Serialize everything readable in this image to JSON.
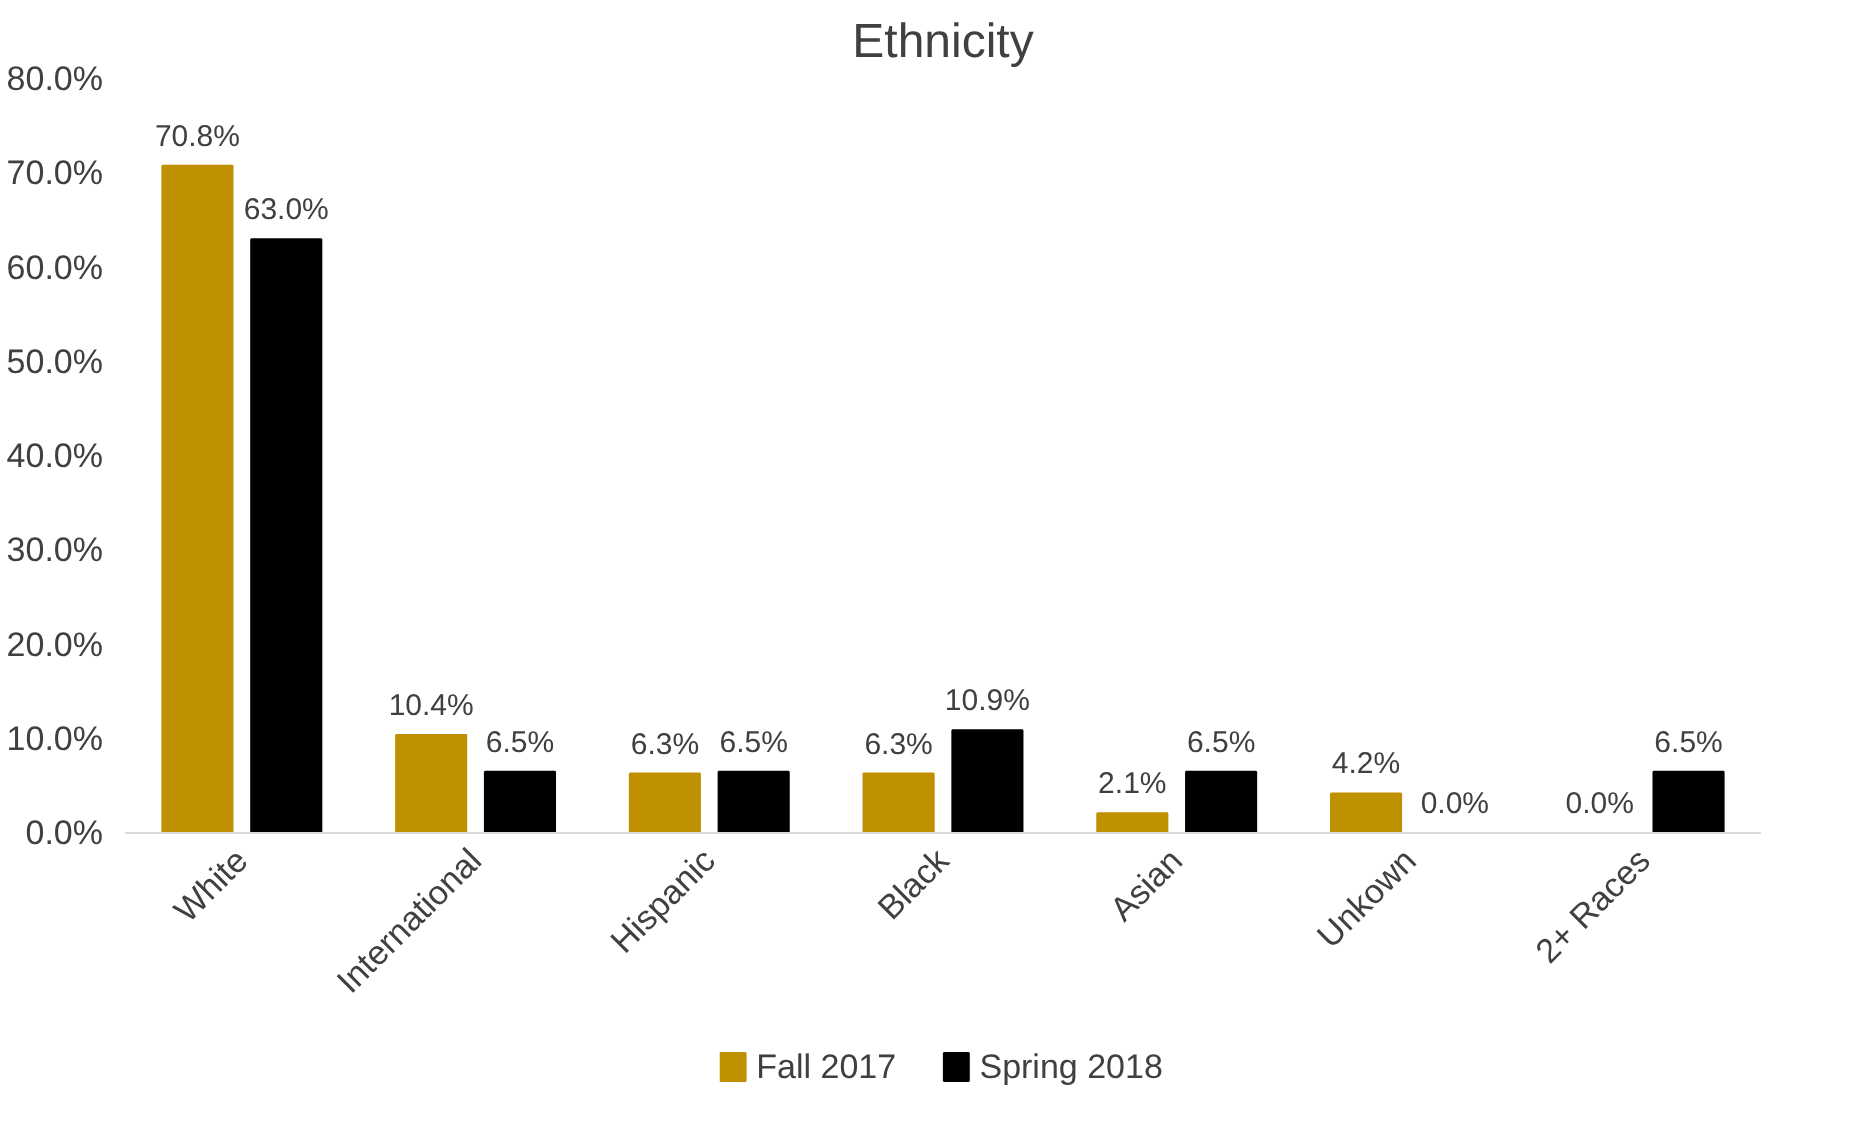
{
  "chart_data": {
    "type": "bar",
    "title": "Ethnicity",
    "categories": [
      "White",
      "International",
      "Hispanic",
      "Black",
      "Asian",
      "Unkown",
      "2+ Races"
    ],
    "series": [
      {
        "name": "Fall 2017",
        "color": "#bf9000",
        "values": [
          70.8,
          10.4,
          6.3,
          6.3,
          2.1,
          4.2,
          0.0
        ],
        "value_labels": [
          "70.8%",
          "10.4%",
          "6.3%",
          "6.3%",
          "2.1%",
          "4.2%",
          "0.0%"
        ]
      },
      {
        "name": "Spring 2018",
        "color": "#000000",
        "values": [
          63.0,
          6.5,
          6.5,
          10.9,
          6.5,
          0.0,
          6.5
        ],
        "value_labels": [
          "63.0%",
          "6.5%",
          "6.5%",
          "10.9%",
          "6.5%",
          "0.0%",
          "6.5%"
        ]
      }
    ],
    "ylim": [
      0,
      80
    ],
    "yticks": [
      {
        "value": 0,
        "label": "0.0%"
      },
      {
        "value": 10,
        "label": "10.0%"
      },
      {
        "value": 20,
        "label": "20.0%"
      },
      {
        "value": 30,
        "label": "30.0%"
      },
      {
        "value": 40,
        "label": "40.0%"
      },
      {
        "value": 50,
        "label": "50.0%"
      },
      {
        "value": 60,
        "label": "60.0%"
      },
      {
        "value": 70,
        "label": "70.0%"
      },
      {
        "value": 80,
        "label": "80.0%"
      }
    ],
    "grid": false,
    "legend": "bottom"
  }
}
